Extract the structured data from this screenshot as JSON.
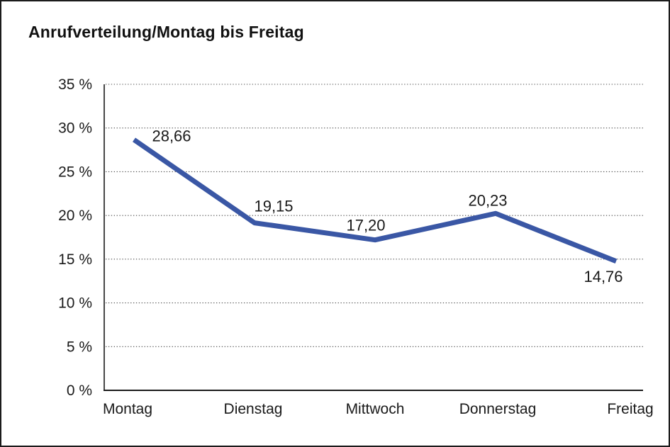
{
  "title": "Anrufverteilung/Montag bis Freitag",
  "chart_data": {
    "type": "line",
    "title": "Anrufverteilung/Montag bis Freitag",
    "categories": [
      "Montag",
      "Dienstag",
      "Mittwoch",
      "Donnerstag",
      "Freitag"
    ],
    "values": [
      28.66,
      19.15,
      17.2,
      20.23,
      14.76
    ],
    "point_labels": [
      "28,66",
      "19,15",
      "17,20",
      "20,23",
      "14,76"
    ],
    "ytick_labels": [
      "0 %",
      "5 %",
      "10 %",
      "15 %",
      "20 %",
      "25 %",
      "30 %",
      "35 %"
    ],
    "ylim": [
      0,
      35
    ],
    "ytick_step": 5,
    "xlabel": "",
    "ylabel": "",
    "grid": "horizontal-dotted",
    "legend": "none"
  },
  "colors": {
    "line": "#3A57A5",
    "axis": "#1a1a1a",
    "grid": "#4a4a4a",
    "text": "#1a1a1a",
    "background": "#ffffff",
    "border": "#1b1b1b"
  }
}
